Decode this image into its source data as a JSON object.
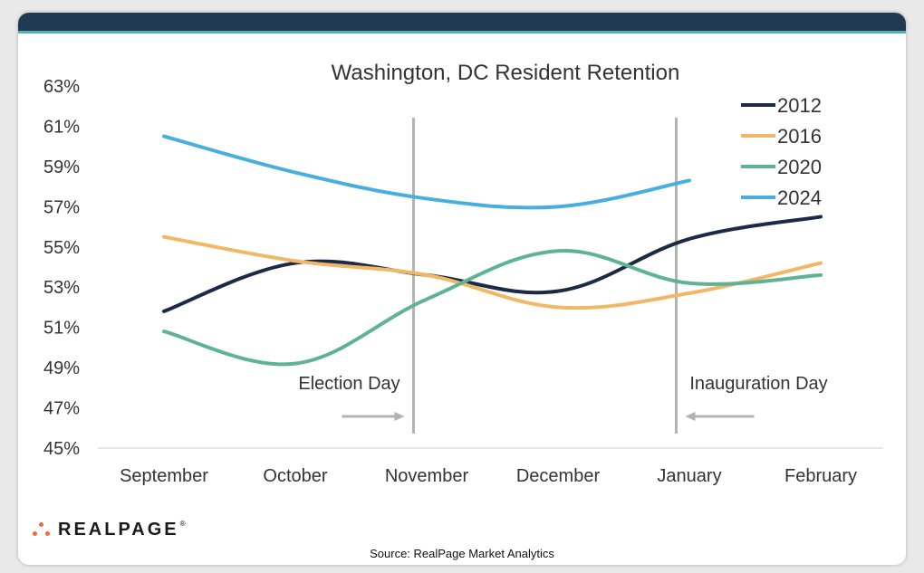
{
  "chart_data": {
    "type": "line",
    "title": "Washington, DC Resident Retention",
    "categories": [
      "September",
      "October",
      "November",
      "December",
      "January",
      "February"
    ],
    "ylim": [
      45,
      63
    ],
    "yticks": [
      45,
      47,
      49,
      51,
      53,
      55,
      57,
      59,
      61,
      63
    ],
    "ytick_labels": [
      "45%",
      "47%",
      "49%",
      "51%",
      "53%",
      "55%",
      "57%",
      "59%",
      "61%",
      "63%"
    ],
    "series": [
      {
        "name": "2012",
        "color": "#1b2a47",
        "values": [
          51.8,
          54.2,
          53.6,
          52.8,
          55.4,
          56.5
        ]
      },
      {
        "name": "2016",
        "color": "#f2b765",
        "values": [
          55.5,
          54.3,
          53.6,
          52.0,
          52.7,
          54.2
        ]
      },
      {
        "name": "2020",
        "color": "#5fb394",
        "values": [
          50.8,
          49.2,
          52.4,
          54.8,
          53.2,
          53.6
        ]
      },
      {
        "name": "2024",
        "color": "#47aee0",
        "values": [
          60.5,
          58.7,
          57.4,
          57.0,
          58.3,
          null
        ]
      }
    ],
    "markers": [
      {
        "label": "Election Day",
        "position": 1.9,
        "arrow": "right"
      },
      {
        "label": "Inauguration Day",
        "position": 3.9,
        "arrow": "left"
      }
    ],
    "legend": "top-right"
  },
  "logo": {
    "text": "REALPAGE",
    "trademark": "®"
  },
  "source": "Source: RealPage Market Analytics"
}
